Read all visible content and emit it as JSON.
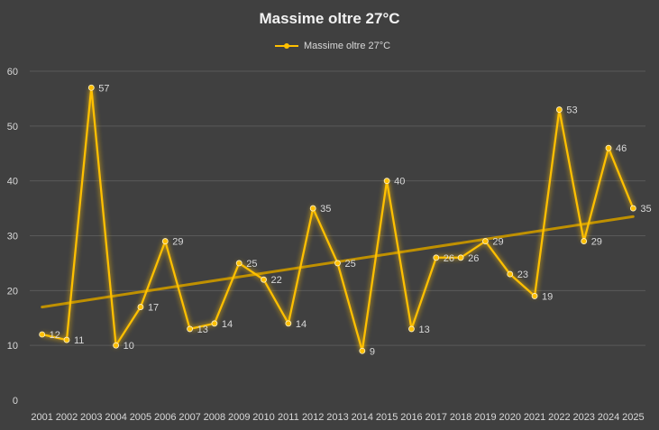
{
  "chart_data": {
    "type": "line",
    "title": "Massime oltre 27°C",
    "legend": "top",
    "grid": true,
    "ylim": [
      0,
      60
    ],
    "yticks": [
      0,
      10,
      20,
      30,
      40,
      50,
      60
    ],
    "categories": [
      "2001",
      "2002",
      "2003",
      "2004",
      "2005",
      "2006",
      "2007",
      "2008",
      "2009",
      "2010",
      "2011",
      "2012",
      "2013",
      "2014",
      "2015",
      "2016",
      "2017",
      "2018",
      "2019",
      "2020",
      "2021",
      "2022",
      "2023",
      "2024",
      "2025"
    ],
    "series": [
      {
        "name": "Massime oltre 27°C",
        "color": "#ffc000",
        "values": [
          12,
          11,
          57,
          10,
          17,
          29,
          13,
          14,
          25,
          22,
          14,
          35,
          25,
          9,
          40,
          13,
          26,
          26,
          29,
          23,
          19,
          53,
          29,
          46,
          35
        ]
      }
    ],
    "trendline": {
      "type": "linear",
      "color": "#bf9000",
      "start": 17,
      "end": 33.5
    }
  }
}
